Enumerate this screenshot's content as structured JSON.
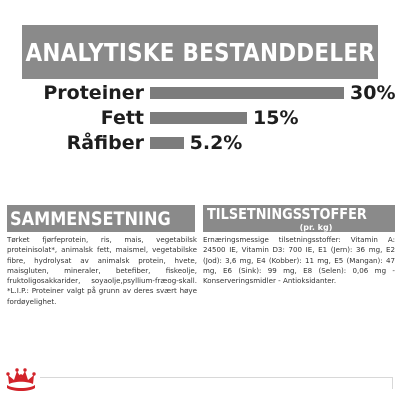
{
  "header": {
    "title": "ANALYTISKE BESTANDDELER"
  },
  "nutrients": [
    {
      "label": "Proteiner",
      "value_text": "30%",
      "percent": 30
    },
    {
      "label": "Fett",
      "value_text": "15%",
      "percent": 15
    },
    {
      "label": "Råfiber",
      "value_text": "5.2%",
      "percent": 5.2
    }
  ],
  "composition": {
    "title": "SAMMENSETNING",
    "text": "Tørket fjørfeprotein, ris, mais, vegetabilsk proteinisolat*, animalsk fett, maismel, vegetabilske fibre, hydrolysat av animalsk protein, hvete, maisgluten, mineraler, betefiber, fiskeolje, fruktoligosakkarider, soyaolje,psyllium-fræog-skall. *L.I.P.: Proteiner valgt på grunn av deres svært høye fordøyelighet."
  },
  "additives": {
    "title": "TILSETNINGSSTOFFER",
    "subtitle": "(pr. kg)",
    "text": "Ernæringsmessige tilsetningsstoffer: Vitamin A: 24500 IE, Vitamin D3: 700 IE, E1 (Jern): 36 mg, E2 (Jod): 3,6 mg, E4 (Kobber): 11 mg, E5 (Mangan): 47 mg, E6 (Sink): 99 mg, E8 (Selen): 0,06 mg - Konserveringsmidler - Antioksidanter."
  },
  "colors": {
    "banner": "#8a8a8a",
    "bar": "#7c7c7c",
    "logo": "#d2232a"
  },
  "logo": {
    "icon": "royal-canin-crown-logo"
  }
}
